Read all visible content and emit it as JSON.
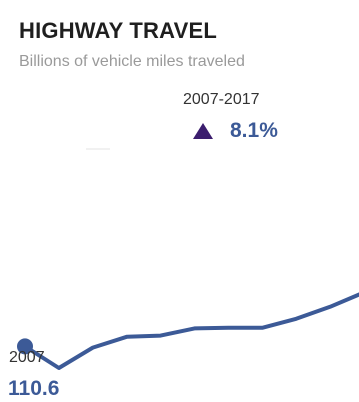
{
  "title": "HIGHWAY TRAVEL",
  "subtitle": "Billions of vehicle miles traveled",
  "change": {
    "period": "2007-2017",
    "value": "8.1%",
    "direction_icon": "triangle-up-icon",
    "icon_color": "#3b1d6e"
  },
  "start": {
    "year": "2007",
    "value_label": "110.6"
  },
  "chart_data": {
    "type": "line",
    "x": [
      2007,
      2008,
      2009,
      2010,
      2011,
      2012,
      2013,
      2014,
      2015,
      2016,
      2017
    ],
    "series": [
      {
        "values": [
          110.6,
          107.0,
          110.4,
          112.2,
          112.4,
          113.6,
          113.7,
          113.7,
          115.2,
          117.2,
          119.6
        ],
        "color": "#3c5a97"
      }
    ],
    "ylim": [
      90,
      150
    ],
    "grid": false,
    "legend": "none"
  }
}
